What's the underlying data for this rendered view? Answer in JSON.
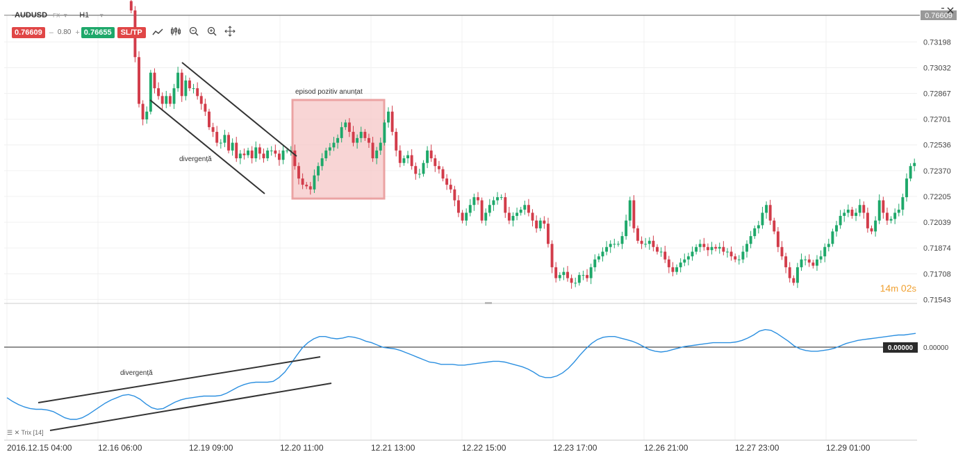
{
  "header": {
    "symbol": "AUDUSD",
    "market": "FX",
    "timeframe": "H1",
    "sell_price": "0.76609",
    "quantity": "0.80",
    "buy_price": "0.76655",
    "sltp_label": "SL/TP",
    "top_right_price": "0.76609"
  },
  "colors": {
    "bull": "#1ea86a",
    "bear": "#d23c4a",
    "trix": "#2b8fe0",
    "highlight": "#f6c7c7",
    "highlight_border": "#eba3a3"
  },
  "tools": [
    "trend-line-icon",
    "indicator-icon",
    "zoom-out-icon",
    "zoom-in-icon",
    "crosshair-icon"
  ],
  "timer": {
    "minutes": "14",
    "m": "m",
    "seconds": "02",
    "s": "s"
  },
  "annotations": {
    "box_label": "episod pozitiv anunțat",
    "price_div_label": "divergență",
    "trix_div_label": "divergență"
  },
  "trix": {
    "name": "Trix [14]",
    "zero_label": "0.00000",
    "zero_badge": "0.00000"
  },
  "chart_data": [
    {
      "type": "candlestick",
      "ylim": [
        0.7154,
        0.7336
      ],
      "yticks": [
        "0.73198",
        "0.73032",
        "0.72867",
        "0.72701",
        "0.72536",
        "0.72370",
        "0.72205",
        "0.72039",
        "0.71874",
        "0.71708",
        "0.71543"
      ],
      "xticks": [
        "2016.12.15 04:00",
        "12.16 06:00",
        "12.19 09:00",
        "12.20 11:00",
        "12.21 13:00",
        "12.22 15:00",
        "12.23 17:00",
        "12.26 21:00",
        "12.27 23:00",
        "12.29 01:00"
      ],
      "close": [
        0.734,
        0.731,
        0.728,
        0.727,
        0.7275,
        0.73,
        0.729,
        0.7285,
        0.728,
        0.7285,
        0.728,
        0.729,
        0.73,
        0.7285,
        0.7295,
        0.729,
        0.729,
        0.7285,
        0.728,
        0.7275,
        0.7265,
        0.7262,
        0.7255,
        0.7255,
        0.726,
        0.725,
        0.7255,
        0.7245,
        0.7248,
        0.7247,
        0.725,
        0.7245,
        0.7252,
        0.7248,
        0.7245,
        0.725,
        0.725,
        0.7248,
        0.7244,
        0.725,
        0.725,
        0.725,
        0.724,
        0.7232,
        0.7228,
        0.7227,
        0.7225,
        0.7234,
        0.724,
        0.7245,
        0.725,
        0.7252,
        0.7255,
        0.7258,
        0.7265,
        0.7268,
        0.7262,
        0.7255,
        0.7258,
        0.7262,
        0.7258,
        0.7255,
        0.7245,
        0.725,
        0.7255,
        0.7268,
        0.7275,
        0.7262,
        0.725,
        0.7242,
        0.7245,
        0.7247,
        0.724,
        0.7235,
        0.7235,
        0.7242,
        0.725,
        0.7245,
        0.724,
        0.7238,
        0.7232,
        0.7228,
        0.7225,
        0.7218,
        0.721,
        0.7205,
        0.721,
        0.7215,
        0.722,
        0.7218,
        0.7205,
        0.721,
        0.7215,
        0.7218,
        0.722,
        0.722,
        0.721,
        0.7205,
        0.7208,
        0.721,
        0.7212,
        0.7215,
        0.721,
        0.7205,
        0.72,
        0.7205,
        0.7203,
        0.719,
        0.7175,
        0.7168,
        0.717,
        0.7172,
        0.7168,
        0.7165,
        0.7165,
        0.717,
        0.717,
        0.7168,
        0.7175,
        0.718,
        0.7182,
        0.7185,
        0.7188,
        0.719,
        0.719,
        0.719,
        0.7195,
        0.7205,
        0.7218,
        0.72,
        0.7192,
        0.719,
        0.719,
        0.7192,
        0.7188,
        0.7185,
        0.7185,
        0.718,
        0.7175,
        0.7172,
        0.7175,
        0.7178,
        0.718,
        0.7182,
        0.7185,
        0.7188,
        0.719,
        0.7188,
        0.7186,
        0.7188,
        0.7187,
        0.7188,
        0.7185,
        0.7185,
        0.7182,
        0.718,
        0.718,
        0.7185,
        0.719,
        0.7195,
        0.72,
        0.7202,
        0.721,
        0.7215,
        0.7205,
        0.7198,
        0.7188,
        0.7182,
        0.7175,
        0.7168,
        0.7165,
        0.7175,
        0.718,
        0.718,
        0.7178,
        0.7176,
        0.718,
        0.7182,
        0.7188,
        0.719,
        0.7198,
        0.7202,
        0.7208,
        0.721,
        0.7212,
        0.7208,
        0.721,
        0.7215,
        0.721,
        0.72,
        0.7198,
        0.7205,
        0.7218,
        0.721,
        0.7205,
        0.7206,
        0.721,
        0.7212,
        0.722,
        0.7232,
        0.724,
        0.7242
      ]
    },
    {
      "type": "line",
      "name": "Trix [14]",
      "ylim": [
        -0.00011,
        1.2e-05
      ],
      "values": [
        -7.3e-05,
        -7.8e-05,
        -8.2e-05,
        -8.5e-05,
        -8.7e-05,
        -8.8e-05,
        -8.8e-05,
        -8.9e-05,
        -9.1e-05,
        -9.5e-05,
        -9.9e-05,
        -0.000101,
        -0.000101,
        -9.9e-05,
        -9.5e-05,
        -9e-05,
        -8.5e-05,
        -8e-05,
        -7.6e-05,
        -7.3e-05,
        -7e-05,
        -6.9e-05,
        -7.1e-05,
        -7.5e-05,
        -8.1e-05,
        -8.6e-05,
        -8.8e-05,
        -8.7e-05,
        -8.3e-05,
        -7.9e-05,
        -7.6e-05,
        -7.4e-05,
        -7.3e-05,
        -7.2e-05,
        -7.1e-05,
        -7.1e-05,
        -7.1e-05,
        -7e-05,
        -6.7e-05,
        -6.3e-05,
        -5.9e-05,
        -5.6e-05,
        -5.4e-05,
        -5.3e-05,
        -5.3e-05,
        -5.3e-05,
        -5.2e-05,
        -4.7e-05,
        -4e-05,
        -3e-05,
        -1.9e-05,
        -9e-06,
        -2e-06,
        3e-06,
        6e-06,
        6e-06,
        4e-06,
        3e-06,
        4e-06,
        6e-06,
        5e-06,
        3e-06,
        0.0,
        -2e-06,
        -5e-06,
        -8e-06,
        -9e-06,
        -1e-05,
        -1.2e-05,
        -1.5e-05,
        -1.8e-05,
        -2.1e-05,
        -2.4e-05,
        -2.7e-05,
        -2.8e-05,
        -3e-05,
        -3e-05,
        -3e-05,
        -3.1e-05,
        -3.1e-05,
        -3e-05,
        -2.9e-05,
        -2.8e-05,
        -2.7e-05,
        -2.6e-05,
        -2.6e-05,
        -2.7e-05,
        -2.9e-05,
        -3.1e-05,
        -3.3e-05,
        -3.6e-05,
        -4e-05,
        -4.5e-05,
        -4.7e-05,
        -4.7e-05,
        -4.5e-05,
        -4.1e-05,
        -3.5e-05,
        -2.7e-05,
        -1.8e-05,
        -1e-05,
        -3e-06,
        2e-06,
        5e-06,
        6e-06,
        6e-06,
        4e-06,
        2e-06,
        0.0,
        -3e-06,
        -7e-06,
        -1.1e-05,
        -1.3e-05,
        -1.4e-05,
        -1.3e-05,
        -1.1e-05,
        -9e-06,
        -7e-06,
        -6e-06,
        -5e-06,
        -4e-06,
        -3e-06,
        -2e-06,
        -2e-06,
        -2e-06,
        -2e-06,
        -1e-06,
        1e-06,
        4e-06,
        8e-06,
        1.3e-05,
        1.5e-05,
        1.4e-05,
        1e-05,
        5e-06,
        0.0,
        -6e-06,
        -1e-05,
        -1.2e-05,
        -1.3e-05,
        -1.3e-05,
        -1.2e-05,
        -1.1e-05,
        -9e-06,
        -6e-06,
        -3e-06,
        -1e-06,
        1e-06,
        2e-06,
        3e-06,
        4e-06,
        5e-06,
        6e-06,
        7e-06,
        8e-06,
        8e-06,
        9e-06,
        1e-05
      ]
    }
  ]
}
